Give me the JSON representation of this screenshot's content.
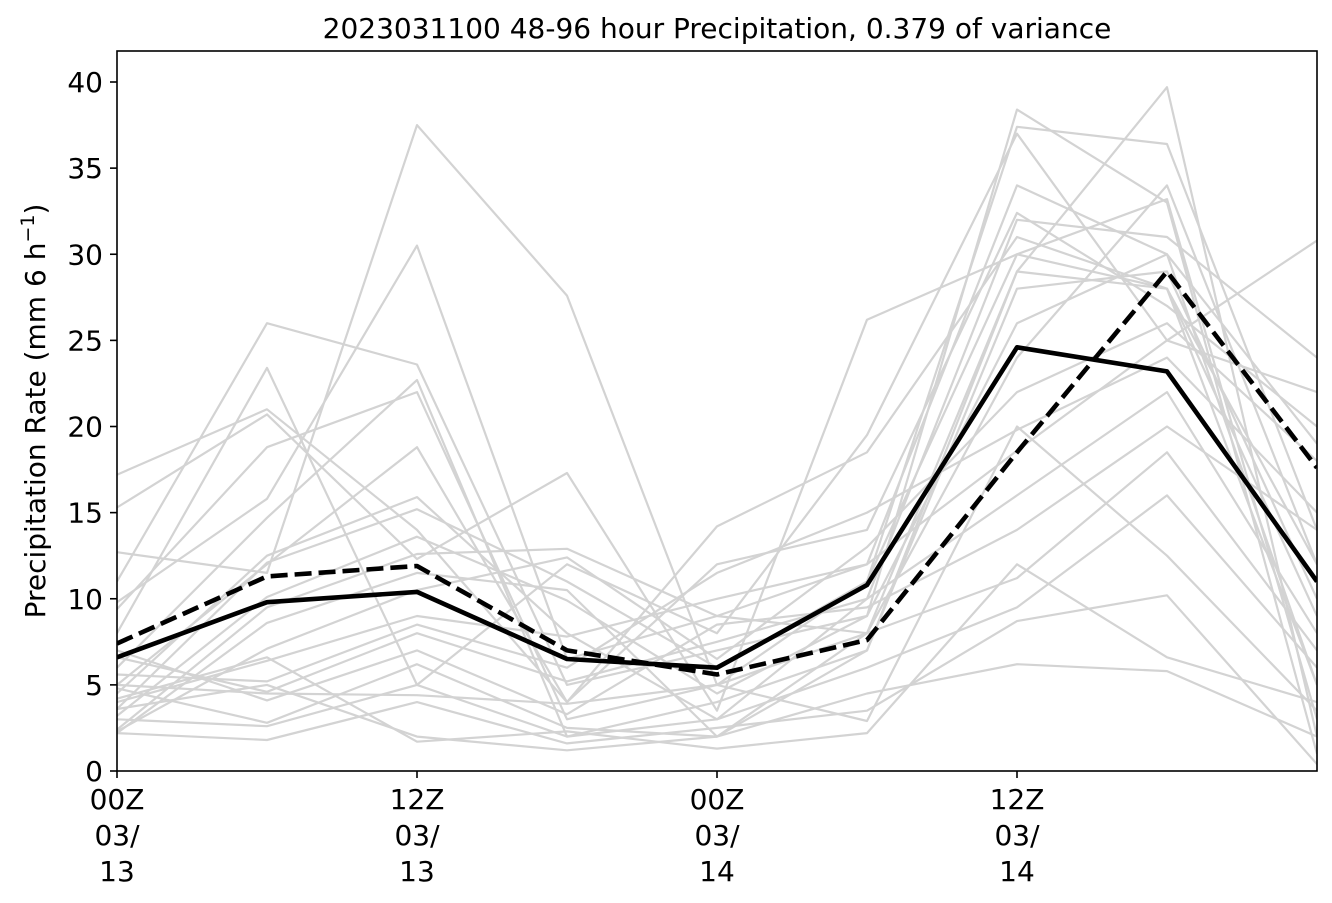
{
  "chart_data": {
    "type": "line",
    "title": "2023031100 48-96 hour Precipitation, 0.379 of variance",
    "ylabel": "Precipitation Rate (mm 6 h",
    "ylabel_sup": "−1",
    "ylabel_close": ")",
    "xlabel": "",
    "ylim": [
      0,
      41.8
    ],
    "xlim": [
      0,
      8
    ],
    "yticks": [
      0,
      5,
      10,
      15,
      20,
      25,
      30,
      35,
      40
    ],
    "xticks": [
      {
        "x": 0,
        "lines": [
          "00Z",
          "03/",
          "13"
        ]
      },
      {
        "x": 2,
        "lines": [
          "12Z",
          "03/",
          "13"
        ]
      },
      {
        "x": 4,
        "lines": [
          "00Z",
          "03/",
          "14"
        ]
      },
      {
        "x": 6,
        "lines": [
          "12Z",
          "03/",
          "14"
        ]
      }
    ],
    "x": [
      0,
      1,
      2,
      3,
      4,
      5,
      6,
      7,
      8
    ],
    "grid": false,
    "legend": "none",
    "colors": {
      "members": "#d3d3d3",
      "highlight": "#000000"
    },
    "series": [
      {
        "values": [
          6.6,
          9.8,
          10.4,
          6.5,
          6.0,
          10.8,
          24.6,
          23.2,
          11.0
        ],
        "style": "solid"
      },
      {
        "values": [
          7.4,
          11.3,
          11.9,
          7.0,
          5.6,
          7.6,
          18.5,
          29.0,
          17.6
        ],
        "style": "dashed"
      }
    ],
    "members": [
      [
        17.2,
        21.0,
        14.0,
        4.0,
        14.2,
        18.5,
        31.0,
        28.0,
        12.0
      ],
      [
        15.3,
        20.7,
        12.3,
        17.3,
        3.5,
        26.2,
        30.0,
        28.0,
        5.0
      ],
      [
        11.0,
        26.0,
        23.6,
        5.0,
        7.0,
        9.0,
        38.4,
        33.0,
        1.0
      ],
      [
        12.7,
        11.5,
        37.5,
        27.6,
        5.0,
        8.0,
        29.0,
        39.7,
        2.0
      ],
      [
        8.0,
        23.4,
        5.0,
        12.0,
        8.0,
        19.5,
        37.0,
        25.0,
        30.8
      ],
      [
        9.4,
        18.8,
        22.0,
        3.0,
        5.0,
        11.0,
        37.4,
        36.4,
        14.0
      ],
      [
        9.8,
        15.8,
        30.5,
        6.5,
        9.0,
        12.0,
        34.0,
        30.0,
        5.0
      ],
      [
        6.0,
        14.7,
        22.7,
        2.0,
        4.0,
        7.0,
        28.0,
        29.0,
        10.0
      ],
      [
        5.0,
        12.0,
        18.8,
        4.0,
        12.0,
        14.0,
        32.4,
        27.0,
        20.0
      ],
      [
        4.5,
        12.5,
        15.9,
        8.0,
        3.0,
        10.0,
        32.0,
        31.0,
        24.0
      ],
      [
        3.6,
        12.1,
        15.2,
        11.0,
        6.0,
        11.0,
        30.0,
        33.2,
        3.0
      ],
      [
        3.2,
        10.1,
        13.6,
        9.9,
        4.5,
        9.0,
        26.0,
        30.0,
        19.0
      ],
      [
        2.4,
        9.5,
        12.6,
        12.9,
        9.0,
        8.0,
        24.0,
        34.0,
        12.0
      ],
      [
        2.2,
        8.6,
        11.5,
        10.5,
        2.0,
        7.0,
        29.0,
        28.0,
        9.0
      ],
      [
        2.3,
        7.1,
        10.5,
        12.4,
        6.5,
        13.0,
        22.0,
        26.0,
        18.0
      ],
      [
        4.0,
        6.4,
        9.0,
        7.8,
        10.0,
        12.0,
        18.6,
        25.0,
        22.0
      ],
      [
        5.6,
        5.2,
        8.5,
        6.0,
        11.5,
        15.0,
        19.8,
        24.0,
        15.0
      ],
      [
        6.6,
        4.6,
        8.0,
        5.2,
        7.5,
        10.0,
        16.0,
        22.0,
        8.0
      ],
      [
        7.0,
        4.1,
        7.0,
        3.3,
        8.5,
        9.5,
        14.0,
        20.0,
        14.0
      ],
      [
        4.8,
        2.8,
        6.2,
        2.5,
        2.0,
        8.0,
        11.2,
        18.5,
        7.0
      ],
      [
        3.0,
        2.6,
        5.0,
        2.0,
        3.0,
        6.0,
        9.5,
        16.0,
        6.0
      ],
      [
        2.2,
        1.8,
        4.0,
        1.6,
        2.5,
        3.5,
        8.7,
        10.2,
        0.4
      ],
      [
        3.6,
        5.0,
        2.0,
        1.2,
        2.0,
        4.5,
        6.2,
        5.8,
        2.0
      ],
      [
        4.2,
        6.6,
        1.7,
        2.3,
        1.3,
        2.2,
        12.0,
        6.6,
        4.0
      ],
      [
        5.0,
        4.5,
        4.4,
        3.9,
        5.0,
        2.9,
        20.0,
        12.5,
        3.5
      ]
    ]
  }
}
